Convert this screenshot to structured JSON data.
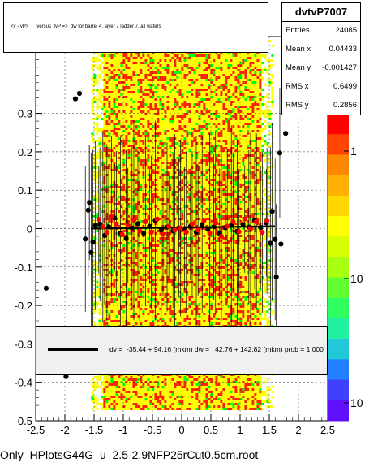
{
  "chart_data": {
    "type": "scatter",
    "title": "<v - vP>      versus  tvP =>  dw for barrel 4, layer 7 ladder 7, all wafers",
    "xlim": [
      -2.5,
      2.5
    ],
    "ylim": [
      -0.5,
      0.5
    ],
    "x_ticks": [
      "-2.5",
      "-2",
      "-1.5",
      "-1",
      "-0.5",
      "0",
      "0.5",
      "1",
      "1.5",
      "2",
      "2.5"
    ],
    "y_ticks": [
      "-0.5",
      "-0.4",
      "-0.3",
      "-0.2",
      "-0.1",
      "0",
      "0.1",
      "0.2",
      "0.3"
    ],
    "z_ticks": [
      "1",
      "10",
      "10"
    ],
    "z_scale": "log",
    "colors": {
      "hot": "#ff2000",
      "mid": "#ffff00",
      "cool": "#00ff00",
      "profile_black": "#000000",
      "profile_red": "#ff0000"
    },
    "series": [
      {
        "marker": "black-dot",
        "points": [
          [
            -2.32,
            -0.155
          ],
          [
            -1.98,
            -0.385
          ],
          [
            -1.82,
            0.338
          ],
          [
            -1.75,
            0.352
          ],
          [
            -1.65,
            -0.027
          ],
          [
            -1.6,
            0.048
          ],
          [
            -1.58,
            0.068
          ],
          [
            -1.55,
            -0.062
          ],
          [
            -1.52,
            -0.035
          ],
          [
            -1.48,
            0.008
          ],
          [
            -1.4,
            0.012
          ],
          [
            -1.32,
            -0.018
          ],
          [
            -1.25,
            0.005
          ],
          [
            -1.15,
            0.028
          ],
          [
            -1.05,
            -0.012
          ],
          [
            -0.95,
            -0.026
          ],
          [
            -0.85,
            0.002
          ],
          [
            -0.75,
            0.013
          ],
          [
            -0.65,
            -0.012
          ],
          [
            -0.55,
            0.006
          ],
          [
            -0.45,
            0.021
          ],
          [
            -0.35,
            -0.004
          ],
          [
            -0.25,
            0.004
          ],
          [
            -0.15,
            -0.006
          ],
          [
            -0.05,
            0.002
          ],
          [
            0.05,
            0.0
          ],
          [
            0.15,
            0.006
          ],
          [
            0.25,
            -0.01
          ],
          [
            0.35,
            0.011
          ],
          [
            0.45,
            -0.002
          ],
          [
            0.55,
            0.005
          ],
          [
            0.65,
            -0.013
          ],
          [
            0.75,
            0.002
          ],
          [
            0.85,
            0.009
          ],
          [
            0.95,
            -0.007
          ],
          [
            1.05,
            0.011
          ],
          [
            1.15,
            0.004
          ],
          [
            1.25,
            0.022
          ],
          [
            1.35,
            0.003
          ],
          [
            1.45,
            0.015
          ],
          [
            1.52,
            -0.038
          ],
          [
            1.55,
            0.045
          ],
          [
            1.6,
            -0.028
          ],
          [
            1.62,
            -0.126
          ],
          [
            1.68,
            0.197
          ],
          [
            1.78,
            0.248
          ],
          [
            1.7,
            -0.04
          ]
        ]
      },
      {
        "marker": "red-dot",
        "points": [
          [
            -1.42,
            0.024
          ],
          [
            -1.35,
            0.005
          ],
          [
            -1.28,
            -0.01
          ],
          [
            -1.2,
            0.031
          ],
          [
            -1.12,
            0.012
          ],
          [
            -1.02,
            -0.015
          ],
          [
            -0.92,
            0.008
          ],
          [
            -0.82,
            0.022
          ],
          [
            -0.72,
            -0.006
          ],
          [
            -0.62,
            0.018
          ],
          [
            -0.52,
            -0.01
          ],
          [
            -0.42,
            0.025
          ],
          [
            -0.32,
            -0.015
          ],
          [
            -0.22,
            0.006
          ],
          [
            -0.12,
            -0.004
          ],
          [
            -0.02,
            0.002
          ],
          [
            0.08,
            -0.009
          ],
          [
            0.18,
            0.012
          ],
          [
            0.28,
            -0.004
          ],
          [
            0.38,
            0.02
          ],
          [
            0.48,
            -0.012
          ],
          [
            0.58,
            0.015
          ],
          [
            0.68,
            -0.02
          ],
          [
            0.78,
            0.006
          ],
          [
            0.88,
            0.018
          ],
          [
            0.98,
            -0.008
          ],
          [
            1.08,
            0.025
          ],
          [
            1.18,
            0.0
          ],
          [
            1.28,
            0.018
          ],
          [
            1.38,
            -0.01
          ],
          [
            1.46,
            0.02
          ]
        ]
      }
    ]
  },
  "stats": {
    "name": "dvtvP7007",
    "rows": [
      {
        "label": "Entries",
        "value": "24085"
      },
      {
        "label": "Mean x",
        "value": "0.04433"
      },
      {
        "label": "Mean y",
        "value": "-0.001427"
      },
      {
        "label": "RMS x",
        "value": "0.6499"
      },
      {
        "label": "RMS y",
        "value": "0.2856"
      }
    ]
  },
  "fit_text": "dv =  -35.44 + 94.16 (mkm) dw =   42.76 + 142.82 (mkm) prob = 1.000",
  "footer": "Only_HPlotsG44G_u_2.5-2.9NFP25rCut0.5cm.root"
}
